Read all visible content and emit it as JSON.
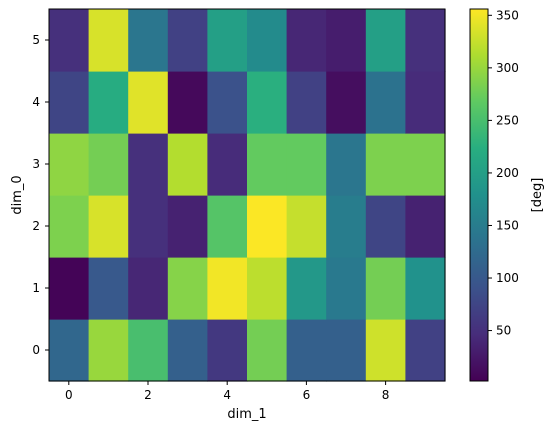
{
  "chart_data": {
    "type": "heatmap",
    "xlabel": "dim_1",
    "ylabel": "dim_0",
    "colorbar_label": "[deg]",
    "colormap": "viridis",
    "vmin": 2,
    "vmax": 356,
    "x_ticks": [
      0,
      2,
      4,
      6,
      8
    ],
    "y_ticks": [
      0,
      1,
      2,
      3,
      4,
      5
    ],
    "colorbar_ticks": [
      50,
      100,
      150,
      200,
      250,
      300,
      350
    ],
    "rows": [
      {
        "dim_0": 0,
        "values": [
          120,
          300,
          250,
          110,
          60,
          280,
          110,
          110,
          330,
          70
        ]
      },
      {
        "dim_0": 1,
        "values": [
          5,
          100,
          40,
          290,
          350,
          320,
          190,
          145,
          280,
          180
        ]
      },
      {
        "dim_0": 2,
        "values": [
          285,
          335,
          50,
          35,
          260,
          355,
          325,
          150,
          75,
          35
        ]
      },
      {
        "dim_0": 3,
        "values": [
          295,
          280,
          50,
          315,
          45,
          270,
          270,
          140,
          285,
          285
        ]
      },
      {
        "dim_0": 4,
        "values": [
          75,
          220,
          340,
          10,
          90,
          225,
          70,
          15,
          135,
          45
        ]
      },
      {
        "dim_0": 5,
        "values": [
          50,
          335,
          140,
          70,
          200,
          170,
          40,
          30,
          200,
          50
        ]
      }
    ]
  }
}
